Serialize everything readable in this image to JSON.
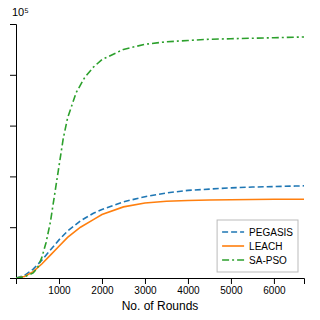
{
  "chart_data": {
    "type": "line",
    "xlabel": "No. of Rounds",
    "annotations": [
      "10⁵"
    ],
    "xlim": [
      0,
      6700
    ],
    "ylim": [
      0,
      100000
    ],
    "xticks": [
      1000,
      2000,
      3000,
      4000,
      5000,
      6000
    ],
    "yticks": [
      0,
      20000,
      40000,
      60000,
      80000,
      100000
    ],
    "tick_labels": "x",
    "grid": false,
    "legend": "lower right",
    "series": [
      {
        "name": "PEGASIS",
        "line_style": "dashed",
        "x": [
          0,
          200,
          400,
          600,
          800,
          1000,
          1200,
          1500,
          1800,
          2000,
          2500,
          3000,
          3500,
          4000,
          4500,
          5000,
          5500,
          6000,
          6500,
          6700
        ],
        "values": [
          0,
          1000,
          3500,
          7000,
          11000,
          15000,
          18500,
          22500,
          25500,
          27000,
          30000,
          32000,
          33500,
          34500,
          35000,
          35500,
          35800,
          36000,
          36200,
          36300
        ]
      },
      {
        "name": "LEACH",
        "line_style": "solid",
        "x": [
          0,
          200,
          400,
          600,
          800,
          1000,
          1200,
          1500,
          1800,
          2000,
          2500,
          3000,
          3500,
          4000,
          4500,
          5000,
          5500,
          6000,
          6500,
          6700
        ],
        "values": [
          0,
          600,
          2500,
          5500,
          9000,
          12500,
          16000,
          20000,
          23000,
          25000,
          28000,
          29500,
          30200,
          30500,
          30700,
          30800,
          30900,
          31000,
          31000,
          31000
        ]
      },
      {
        "name": "SA-PSO",
        "line_style": "dashdot",
        "x": [
          0,
          200,
          400,
          500,
          600,
          700,
          800,
          900,
          1000,
          1100,
          1200,
          1400,
          1600,
          1800,
          2000,
          2500,
          3000,
          3500,
          4000,
          4500,
          5000,
          5500,
          6000,
          6500,
          6700
        ],
        "values": [
          0,
          500,
          2000,
          4000,
          8000,
          14000,
          22000,
          33000,
          44000,
          55000,
          63000,
          73000,
          79000,
          83000,
          86000,
          90000,
          92000,
          93000,
          93500,
          94000,
          94200,
          94400,
          94600,
          94800,
          94900
        ]
      }
    ]
  }
}
